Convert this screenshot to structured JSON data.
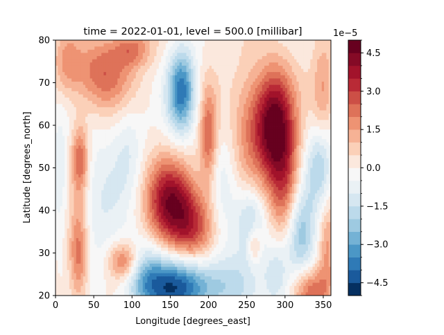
{
  "chart_data": {
    "type": "heatmap",
    "title": "time = 2022-01-01, level = 500.0 [millibar]",
    "xlabel": "Longitude [degrees_east]",
    "ylabel": "Latitude [degrees_north]",
    "xlim": [
      0,
      360
    ],
    "ylim": [
      20,
      80
    ],
    "xticks": [
      "0",
      "50",
      "100",
      "150",
      "200",
      "250",
      "300",
      "350"
    ],
    "xtick_values": [
      0,
      50,
      100,
      150,
      200,
      250,
      300,
      350
    ],
    "yticks": [
      "20",
      "30",
      "40",
      "50",
      "60",
      "70",
      "80"
    ],
    "ytick_values": [
      20,
      30,
      40,
      50,
      60,
      70,
      80
    ],
    "colormap": "RdBu_r",
    "colorbar": {
      "offset_text": "1e−5",
      "vmin": -5.0,
      "vmax": 5.0,
      "levels": [
        -5.0,
        -4.5,
        -4.0,
        -3.5,
        -3.0,
        -2.5,
        -2.0,
        -1.5,
        -1.0,
        -0.5,
        0.0,
        0.5,
        1.0,
        1.5,
        2.0,
        2.5,
        3.0,
        3.5,
        4.0,
        4.5,
        5.0
      ],
      "tick_labels": [
        "−4.5",
        "−3.0",
        "−1.5",
        "0.0",
        "1.5",
        "3.0",
        "4.5"
      ],
      "tick_values": [
        -4.5,
        -3.0,
        -1.5,
        0.0,
        1.5,
        3.0,
        4.5
      ],
      "colors": [
        "#053061",
        "#1a5a9c",
        "#2f7ab6",
        "#4b97c6",
        "#74b2d5",
        "#9ecae1",
        "#bcdaeb",
        "#d6e7f1",
        "#eaf1f5",
        "#f7f7f7",
        "#fbe8dd",
        "#fbd0b8",
        "#f6b295",
        "#ee9373",
        "#de7259",
        "#cc4f46",
        "#b92a36",
        "#a2132b",
        "#850a26",
        "#67001f"
      ]
    },
    "features": [
      {
        "lon": 165,
        "lat": 68,
        "value": -4.0,
        "sx": 13,
        "sy": 7
      },
      {
        "lon": 160,
        "lat": 22,
        "value": -4.5,
        "sx": 35,
        "sy": 5
      },
      {
        "lon": 285,
        "lat": 60,
        "value": 4.8,
        "sx": 18,
        "sy": 9
      },
      {
        "lon": 300,
        "lat": 45,
        "value": 2.5,
        "sx": 14,
        "sy": 9
      },
      {
        "lon": 150,
        "lat": 42,
        "value": 3.8,
        "sx": 22,
        "sy": 7
      },
      {
        "lon": 180,
        "lat": 36,
        "value": 2.5,
        "sx": 20,
        "sy": 6
      },
      {
        "lon": 200,
        "lat": 57,
        "value": 2.3,
        "sx": 8,
        "sy": 8
      },
      {
        "lon": 30,
        "lat": 30,
        "value": 2.6,
        "sx": 9,
        "sy": 8
      },
      {
        "lon": 32,
        "lat": 52,
        "value": 2.6,
        "sx": 8,
        "sy": 6
      },
      {
        "lon": 90,
        "lat": 28,
        "value": 2.4,
        "sx": 14,
        "sy": 3
      },
      {
        "lon": 60,
        "lat": 72,
        "value": 2.3,
        "sx": 28,
        "sy": 6
      },
      {
        "lon": 100,
        "lat": 78,
        "value": 1.8,
        "sx": 18,
        "sy": 3
      },
      {
        "lon": 15,
        "lat": 75,
        "value": 1.3,
        "sx": 12,
        "sy": 5
      },
      {
        "lon": 335,
        "lat": 21,
        "value": 2.4,
        "sx": 16,
        "sy": 4
      },
      {
        "lon": 350,
        "lat": 68,
        "value": 1.6,
        "sx": 10,
        "sy": 8
      },
      {
        "lon": 355,
        "lat": 30,
        "value": 1.6,
        "sx": 8,
        "sy": 8
      },
      {
        "lon": 260,
        "lat": 32,
        "value": 1.6,
        "sx": 6,
        "sy": 3
      },
      {
        "lon": 250,
        "lat": 60,
        "value": 1.4,
        "sx": 16,
        "sy": 10
      },
      {
        "lon": 345,
        "lat": 50,
        "value": -2.2,
        "sx": 13,
        "sy": 7
      },
      {
        "lon": 255,
        "lat": 38,
        "value": -2.0,
        "sx": 14,
        "sy": 6
      },
      {
        "lon": 320,
        "lat": 34,
        "value": -2.6,
        "sx": 14,
        "sy": 8
      },
      {
        "lon": 55,
        "lat": 42,
        "value": -1.1,
        "sx": 26,
        "sy": 12
      },
      {
        "lon": 95,
        "lat": 55,
        "value": -1.0,
        "sx": 14,
        "sy": 8
      },
      {
        "lon": 115,
        "lat": 25,
        "value": -1.6,
        "sx": 18,
        "sy": 6
      },
      {
        "lon": 230,
        "lat": 22,
        "value": -1.3,
        "sx": 26,
        "sy": 6
      },
      {
        "lon": 5,
        "lat": 50,
        "value": -1.0,
        "sx": 7,
        "sy": 10
      },
      {
        "lon": 220,
        "lat": 45,
        "value": -0.9,
        "sx": 14,
        "sy": 10
      },
      {
        "lon": 290,
        "lat": 25,
        "value": -1.6,
        "sx": 12,
        "sy": 6
      }
    ]
  }
}
